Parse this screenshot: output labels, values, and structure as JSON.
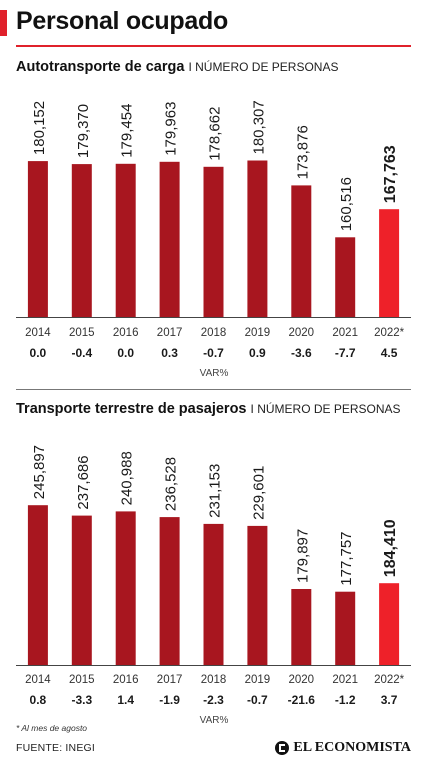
{
  "title": "Personal ocupado",
  "colors": {
    "accent": "#e0212b",
    "bar": "#a8161f",
    "highlight": "#ee2129",
    "baseline": "#444444",
    "divider": "#777777"
  },
  "sections": [
    {
      "title": "Autotransporte de carga",
      "subtitle": "I NÚMERO DE PERSONAS",
      "var_label": "VAR%"
    },
    {
      "title": "Transporte terrestre de pasajeros",
      "subtitle": "I NÚMERO DE PERSONAS",
      "var_label": "VAR%"
    }
  ],
  "chart_data": [
    {
      "type": "bar",
      "categories": [
        "2014",
        "2015",
        "2016",
        "2017",
        "2018",
        "2019",
        "2020",
        "2021",
        "2022*"
      ],
      "values": [
        180152,
        179370,
        179454,
        179963,
        178662,
        180307,
        173876,
        160516,
        167763
      ],
      "value_labels": [
        "180,152",
        "179,370",
        "179,454",
        "179,963",
        "178,662",
        "180,307",
        "173,876",
        "160,516",
        "167,763"
      ],
      "var_pct": [
        "0.0",
        "-0.4",
        "0.0",
        "0.3",
        "-0.7",
        "0.9",
        "-3.6",
        "-7.7",
        "4.5"
      ],
      "highlight_index": 8,
      "ylim": [
        140000,
        183000
      ]
    },
    {
      "type": "bar",
      "categories": [
        "2014",
        "2015",
        "2016",
        "2017",
        "2018",
        "2019",
        "2020",
        "2021",
        "2022*"
      ],
      "values": [
        245897,
        237686,
        240988,
        236528,
        231153,
        229601,
        179897,
        177757,
        184410
      ],
      "value_labels": [
        "245,897",
        "237,686",
        "240,988",
        "236,528",
        "231,153",
        "229,601",
        "179,897",
        "177,757",
        "184,410"
      ],
      "var_pct": [
        "0.8",
        "-3.3",
        "1.4",
        "-1.9",
        "-2.3",
        "-0.7",
        "-21.6",
        "-1.2",
        "3.7"
      ],
      "highlight_index": 8,
      "ylim": [
        120000,
        250000
      ]
    }
  ],
  "footnote": "* Al mes de agosto",
  "source": "FUENTE: INEGI",
  "brand": "EL ECONOMISTA"
}
